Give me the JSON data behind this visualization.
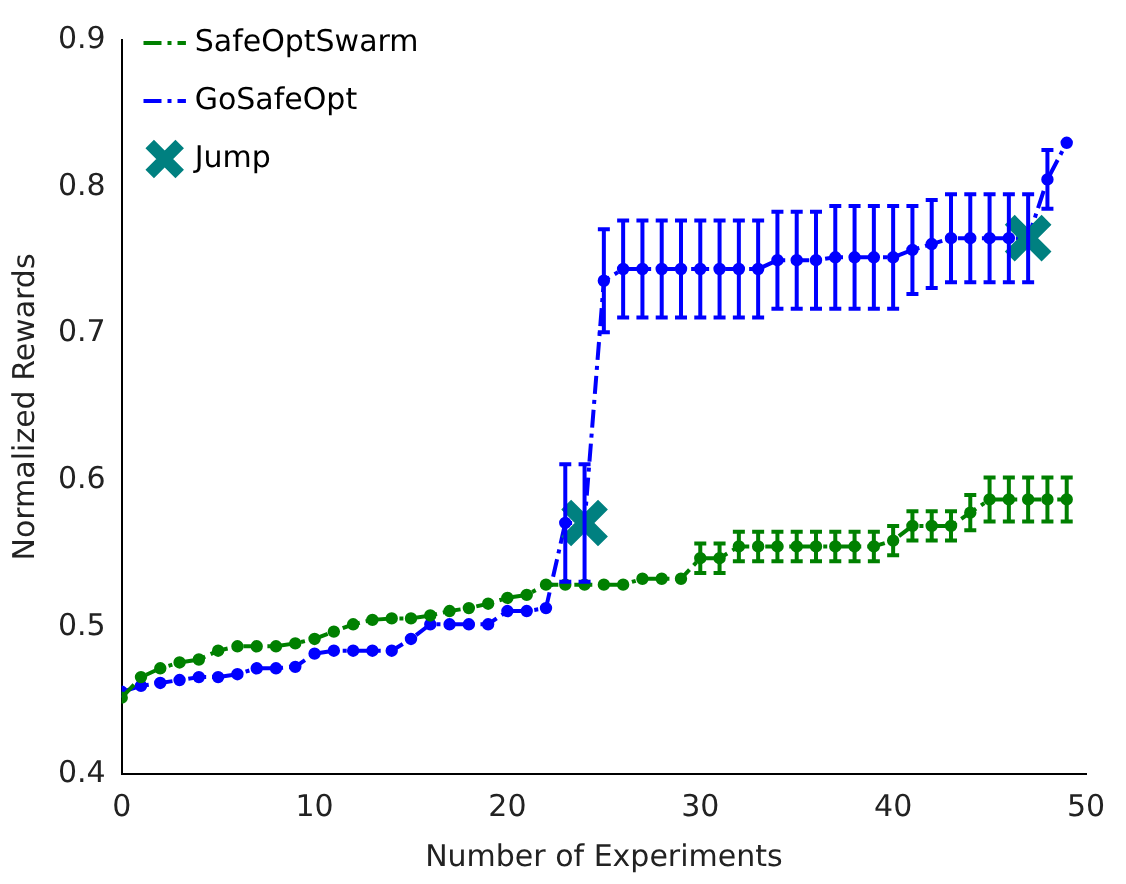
{
  "chart_data": {
    "type": "line",
    "xlabel": "Number of Experiments",
    "ylabel": "Normalized Rewards",
    "x": [
      0,
      1,
      2,
      3,
      4,
      5,
      6,
      7,
      8,
      9,
      10,
      11,
      12,
      13,
      14,
      15,
      16,
      17,
      18,
      19,
      20,
      21,
      22,
      23,
      24,
      25,
      26,
      27,
      28,
      29,
      30,
      31,
      32,
      33,
      34,
      35,
      36,
      37,
      38,
      39,
      40,
      41,
      42,
      43,
      44,
      45,
      46,
      47,
      48,
      49
    ],
    "series": [
      {
        "name": "SafeOptSwarm",
        "color": "#008000",
        "values": [
          0.452,
          0.466,
          0.472,
          0.476,
          0.478,
          0.484,
          0.487,
          0.487,
          0.487,
          0.489,
          0.492,
          0.497,
          0.502,
          0.505,
          0.506,
          0.506,
          0.508,
          0.511,
          0.513,
          0.516,
          0.52,
          0.522,
          0.529,
          0.529,
          0.529,
          0.529,
          0.529,
          0.533,
          0.533,
          0.533,
          0.547,
          0.547,
          0.555,
          0.555,
          0.555,
          0.555,
          0.555,
          0.555,
          0.555,
          0.555,
          0.559,
          0.569,
          0.569,
          0.569,
          0.578,
          0.587,
          0.587,
          0.587,
          0.587,
          0.587
        ],
        "errors": [
          null,
          null,
          null,
          null,
          null,
          null,
          null,
          null,
          null,
          null,
          null,
          null,
          null,
          null,
          null,
          null,
          null,
          null,
          null,
          null,
          null,
          null,
          null,
          null,
          null,
          null,
          null,
          null,
          null,
          null,
          0.01,
          0.01,
          0.01,
          0.01,
          0.01,
          0.01,
          0.01,
          0.01,
          0.01,
          0.01,
          0.01,
          0.01,
          0.01,
          0.01,
          0.012,
          0.015,
          0.015,
          0.015,
          0.015,
          0.015
        ]
      },
      {
        "name": "GoSafeOpt",
        "color": "#0000ff",
        "values": [
          0.456,
          0.46,
          0.462,
          0.464,
          0.466,
          0.466,
          0.468,
          0.472,
          0.472,
          0.473,
          0.482,
          0.484,
          0.484,
          0.484,
          0.484,
          0.492,
          0.502,
          0.502,
          0.502,
          0.502,
          0.511,
          0.511,
          0.513,
          0.571,
          0.571,
          0.736,
          0.744,
          0.744,
          0.744,
          0.744,
          0.744,
          0.744,
          0.744,
          0.744,
          0.75,
          0.75,
          0.75,
          0.752,
          0.752,
          0.752,
          0.752,
          0.757,
          0.761,
          0.765,
          0.765,
          0.765,
          0.765,
          0.765,
          0.805,
          0.83
        ],
        "errors": [
          null,
          null,
          null,
          null,
          null,
          null,
          null,
          null,
          null,
          null,
          null,
          null,
          null,
          null,
          null,
          null,
          null,
          null,
          null,
          null,
          null,
          null,
          null,
          0.04,
          0.04,
          0.035,
          0.033,
          0.033,
          0.033,
          0.033,
          0.033,
          0.033,
          0.033,
          0.033,
          0.033,
          0.033,
          0.033,
          0.035,
          0.035,
          0.035,
          0.035,
          0.03,
          0.03,
          0.03,
          0.03,
          0.03,
          0.03,
          0.03,
          0.02,
          null
        ]
      },
      {
        "name": "Jump",
        "type": "scatter",
        "color": "#008080",
        "x": [
          24,
          47
        ],
        "values": [
          0.571,
          0.765
        ],
        "marker": "cross"
      }
    ],
    "xlim": [
      0,
      50
    ],
    "xticks": [
      0,
      10,
      20,
      30,
      40,
      50
    ],
    "ylim": [
      0.4,
      0.9
    ],
    "yticks": [
      0.4,
      0.5,
      0.6,
      0.7,
      0.8,
      0.9
    ],
    "grid": false,
    "legend": "top left",
    "marker": "circle",
    "line_style": "dashed"
  }
}
